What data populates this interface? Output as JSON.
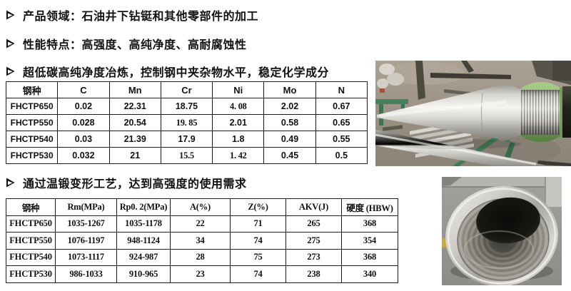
{
  "slide": {
    "bullets": [
      {
        "text": "产品领域：石油井下钻铤和其他零部件的加工"
      },
      {
        "text": "性能特点：高强度、高纯净度、高耐腐蚀性"
      },
      {
        "text": "超低碳高纯净度冶炼，控制钢中夹杂物水平，稳定化学成分"
      },
      {
        "text": "通过温锻变形工艺，达到高强度的使用需求"
      }
    ]
  },
  "chemistry_table": {
    "headers": [
      "钢种",
      "C",
      "Mn",
      "Cr",
      "Ni",
      "Mo",
      "N"
    ],
    "rows": [
      [
        "FHCTP650",
        "0.02",
        "22.31",
        "18.75",
        "4. 08",
        "2.02",
        "0.67"
      ],
      [
        "FHCTP550",
        "0.028",
        "20.54",
        "19. 85",
        "2.01",
        "0.58",
        "0.65"
      ],
      [
        "FHCTP540",
        "0.03",
        "21.39",
        "17.9",
        "1.8",
        "0.49",
        "0.55"
      ],
      [
        "FHCTP530",
        "0.032",
        "21",
        "15.5",
        "1. 42",
        "0.45",
        "0.5"
      ]
    ],
    "serif_cells": [
      [
        0,
        4
      ],
      [
        1,
        3
      ],
      [
        3,
        3
      ],
      [
        3,
        4
      ]
    ]
  },
  "mechanical_table": {
    "headers": [
      "钢种",
      "Rm(MPa)",
      "Rp0. 2(MPa)",
      "A(%)",
      "Z(%)",
      "AKV(J)",
      "硬度 (HBW)"
    ],
    "rows": [
      [
        "FHCTP650",
        "1035-1267",
        "1035-1178",
        "22",
        "71",
        "265",
        "368"
      ],
      [
        "FHCTP550",
        "1076-1197",
        "948-1124",
        "34",
        "74",
        "275",
        "354"
      ],
      [
        "FHCTP540",
        "1073-1117",
        "924-987",
        "28",
        "75",
        "273",
        "368"
      ],
      [
        "FHCTP530",
        "986-1033",
        "910-965",
        "23",
        "74",
        "238",
        "340"
      ]
    ]
  },
  "photos": {
    "top": "drill-collar-workshop-photo",
    "bottom": "threaded-bore-closeup-photo"
  },
  "colors": {
    "text": "#111111",
    "table_border": "#1c1c1c",
    "protector_green": "#6f9e58"
  }
}
